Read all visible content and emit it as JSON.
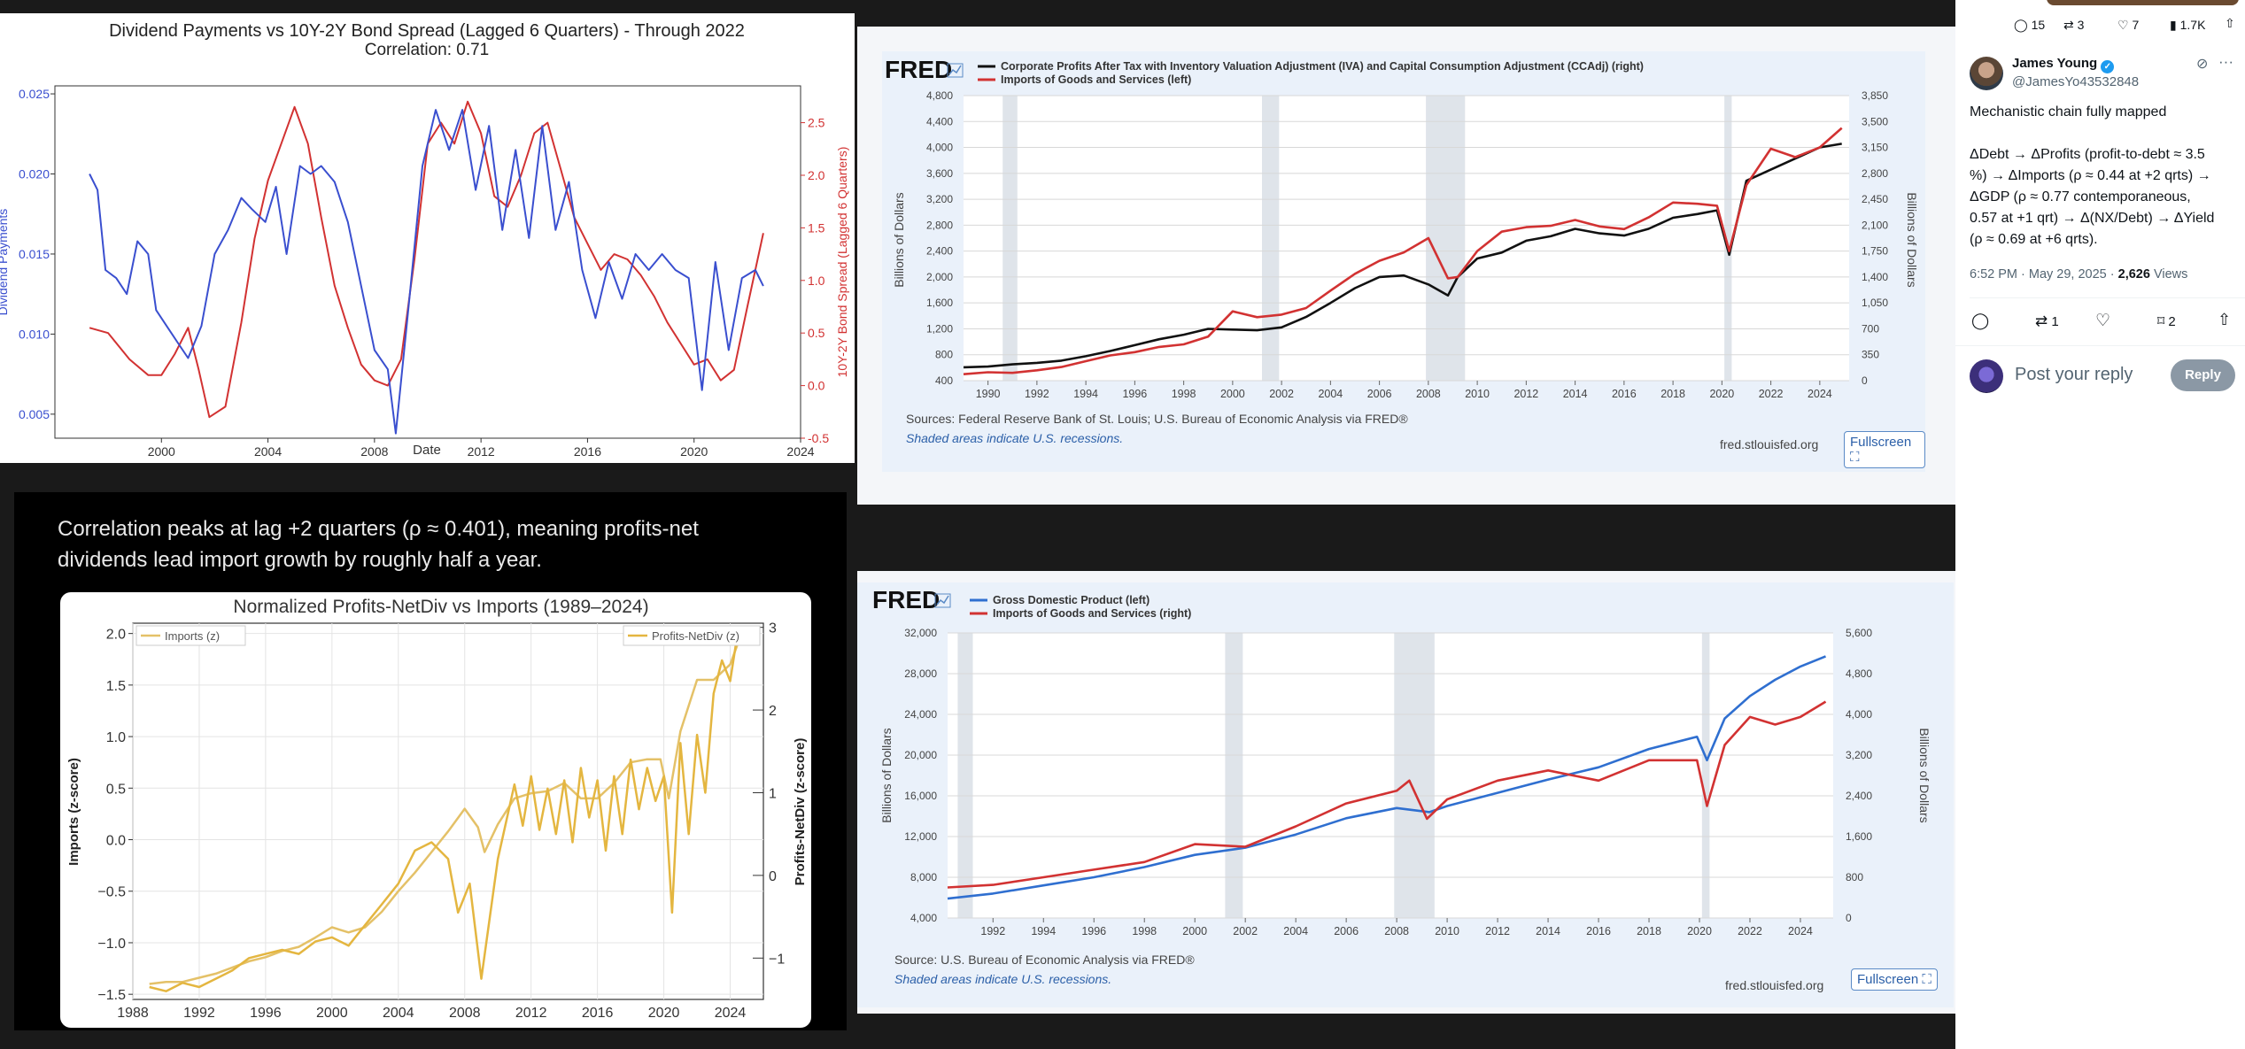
{
  "chart1": {
    "title": "Dividend Payments vs 10Y-2Y Bond Spread (Lagged 6 Quarters) - Through 2022",
    "subtitle": "Correlation: 0.71",
    "xlabel": "Date",
    "ylabel_left": "Dividend Payments",
    "ylabel_right": "10Y-2Y Bond Spread (Lagged 6 Quarters)",
    "y_left_ticks": [
      "0.025",
      "0.020",
      "0.015",
      "0.010",
      "0.005"
    ],
    "y_right_ticks": [
      "2.5",
      "2.0",
      "1.5",
      "1.0",
      "0.5",
      "0.0",
      "-0.5"
    ],
    "x_ticks": [
      "2000",
      "2004",
      "2008",
      "2012",
      "2016",
      "2020",
      "2024"
    ]
  },
  "chart2": {
    "caption": "Correlation peaks at lag +2 quarters (ρ ≈ 0.401), meaning profits-net dividends lead import growth by roughly half a year.",
    "title": "Normalized Profits-NetDiv vs Imports (1989–2024)",
    "legend_left": "Imports (z)",
    "legend_right": "Profits-NetDiv (z)",
    "ylabel_left": "Imports (z-score)",
    "ylabel_right": "Profits-NetDiv (z-score)",
    "y_left_ticks": [
      "2.0",
      "1.5",
      "1.0",
      "0.5",
      "0.0",
      "−0.5",
      "−1.0",
      "−1.5"
    ],
    "y_right_ticks": [
      "3",
      "2",
      "1",
      "0",
      "−1"
    ],
    "x_ticks": [
      "1988",
      "1992",
      "1996",
      "2000",
      "2004",
      "2008",
      "2012",
      "2016",
      "2020",
      "2024"
    ]
  },
  "fred1": {
    "logo": "FRED",
    "legend1": "Corporate Profits After Tax with Inventory Valuation Adjustment (IVA) and Capital Consumption Adjustment (CCAdj) (right)",
    "legend2": "Imports of Goods and Services (left)",
    "ylabel_left": "Billions of Dollars",
    "ylabel_right": "Billions of Dollars",
    "y_left_ticks": [
      "4,800",
      "4,400",
      "4,000",
      "3,600",
      "3,200",
      "2,800",
      "2,400",
      "2,000",
      "1,600",
      "1,200",
      "800",
      "400"
    ],
    "y_right_ticks": [
      "3,850",
      "3,500",
      "3,150",
      "2,800",
      "2,450",
      "2,100",
      "1,750",
      "1,400",
      "1,050",
      "700",
      "350",
      "0"
    ],
    "x_ticks": [
      "1990",
      "1992",
      "1994",
      "1996",
      "1998",
      "2000",
      "2002",
      "2004",
      "2006",
      "2008",
      "2010",
      "2012",
      "2014",
      "2016",
      "2018",
      "2020",
      "2022",
      "2024"
    ],
    "sources": "Sources: Federal Reserve Bank of St. Louis; U.S. Bureau of Economic Analysis via FRED®",
    "shaded": "Shaded areas indicate U.S. recessions.",
    "site": "fred.stlouisfed.org",
    "fullscreen": "Fullscreen ⛶"
  },
  "fred2": {
    "logo": "FRED",
    "legend1": "Gross Domestic Product (left)",
    "legend2": "Imports of Goods and Services (right)",
    "ylabel_left": "Billions of Dollars",
    "ylabel_right": "Billions of Dollars",
    "y_left_ticks": [
      "32,000",
      "28,000",
      "24,000",
      "20,000",
      "16,000",
      "12,000",
      "8,000",
      "4,000"
    ],
    "y_right_ticks": [
      "5,600",
      "4,800",
      "4,000",
      "3,200",
      "2,400",
      "1,600",
      "800",
      "0"
    ],
    "x_ticks": [
      "1992",
      "1994",
      "1996",
      "1998",
      "2000",
      "2002",
      "2004",
      "2006",
      "2008",
      "2010",
      "2012",
      "2014",
      "2016",
      "2018",
      "2020",
      "2022",
      "2024"
    ],
    "sources": "Source: U.S. Bureau of Economic Analysis via FRED®",
    "shaded": "Shaded areas indicate U.S. recessions.",
    "site": "fred.stlouisfed.org",
    "fullscreen": "Fullscreen ⛶"
  },
  "tweet_top_actions": {
    "replies": "15",
    "reposts": "3",
    "likes": "7",
    "views": "1.7K"
  },
  "tweet": {
    "name": "James Young",
    "handle": "@JamesYo43532848",
    "line1": "Mechanistic chain fully mapped",
    "body": [
      "ΔDebt → ΔProfits (profit-to-debt ≈ 3.5",
      "%) → ΔImports (ρ ≈ 0.44 at +2 qrts) →",
      "ΔGDP (ρ ≈ 0.77 contemporaneous,",
      "0.57 at +1 qrt) → Δ(NX/Debt) → ΔYield",
      "(ρ ≈ 0.69 at +6 qrts)."
    ],
    "timestamp": "6:52 PM · May 29, 2025 · ",
    "views_count": "2,626",
    "views_label": " Views",
    "reposts": "1",
    "bookmarks": "2",
    "reply_placeholder": "Post your reply",
    "reply_button": "Reply",
    "colors": {
      "verified": "#1d9bf0",
      "reply_btn": "#8b98a5"
    }
  },
  "chart_data": [
    {
      "type": "line",
      "title": "Dividend Payments vs 10Y-2Y Bond Spread (Lagged 6 Quarters) - Through 2022",
      "xlabel": "Date",
      "xlim": [
        1996,
        2024
      ],
      "series": [
        {
          "name": "Dividend Payments",
          "axis": "left",
          "color": "#3a4fcf",
          "ylim": [
            0.0035,
            0.0255
          ],
          "x": [
            1997.3,
            1997.6,
            1997.9,
            1998.3,
            1998.7,
            1999.1,
            1999.5,
            1999.8,
            2000.2,
            2000.6,
            2001.0,
            2001.5,
            2002.0,
            2002.5,
            2003.0,
            2003.4,
            2003.9,
            2004.3,
            2004.7,
            2005.2,
            2005.6,
            2006.0,
            2006.5,
            2007.0,
            2007.5,
            2008.0,
            2008.5,
            2008.8,
            2009.3,
            2009.8,
            2010.3,
            2010.8,
            2011.3,
            2011.8,
            2012.3,
            2012.8,
            2013.3,
            2013.8,
            2014.3,
            2014.8,
            2015.3,
            2015.8,
            2016.3,
            2016.8,
            2017.3,
            2017.8,
            2018.3,
            2018.8,
            2019.3,
            2019.8,
            2020.3,
            2020.8,
            2021.3,
            2021.8,
            2022.3,
            2022.6
          ],
          "y": [
            0.02,
            0.019,
            0.014,
            0.0135,
            0.0125,
            0.0158,
            0.015,
            0.0115,
            0.0105,
            0.0095,
            0.0085,
            0.0105,
            0.015,
            0.0165,
            0.0185,
            0.0178,
            0.017,
            0.0192,
            0.015,
            0.0205,
            0.02,
            0.0205,
            0.0195,
            0.017,
            0.013,
            0.009,
            0.0078,
            0.0038,
            0.012,
            0.0205,
            0.024,
            0.0215,
            0.024,
            0.019,
            0.023,
            0.0165,
            0.0215,
            0.016,
            0.023,
            0.0165,
            0.0195,
            0.014,
            0.011,
            0.0145,
            0.0122,
            0.015,
            0.014,
            0.015,
            0.014,
            0.0135,
            0.0065,
            0.0145,
            0.009,
            0.0135,
            0.014,
            0.013
          ]
        },
        {
          "name": "10Y-2Y Bond Spread (Lagged 6 Quarters)",
          "axis": "right",
          "color": "#d23232",
          "ylim": [
            -0.5,
            2.85
          ],
          "x": [
            1997.3,
            1998.0,
            1998.8,
            1999.5,
            2000.0,
            2000.5,
            2001.0,
            2001.4,
            2001.8,
            2002.4,
            2003.0,
            2003.5,
            2004.0,
            2004.5,
            2005.0,
            2005.5,
            2006.0,
            2006.5,
            2007.0,
            2007.5,
            2008.0,
            2008.5,
            2009.0,
            2009.5,
            2010.0,
            2010.5,
            2011.0,
            2011.5,
            2012.0,
            2012.5,
            2013.0,
            2013.5,
            2014.0,
            2014.5,
            2015.0,
            2015.5,
            2016.0,
            2016.5,
            2017.0,
            2017.5,
            2018.0,
            2018.5,
            2019.0,
            2019.5,
            2020.0,
            2020.5,
            2021.0,
            2021.5,
            2022.0,
            2022.6
          ],
          "y": [
            0.55,
            0.5,
            0.25,
            0.1,
            0.1,
            0.3,
            0.55,
            0.15,
            -0.3,
            -0.2,
            0.6,
            1.4,
            1.95,
            2.3,
            2.65,
            2.3,
            1.6,
            0.95,
            0.55,
            0.2,
            0.05,
            0.0,
            0.25,
            1.2,
            2.3,
            2.5,
            2.3,
            2.7,
            2.4,
            1.8,
            1.7,
            2.0,
            2.4,
            2.5,
            2.05,
            1.6,
            1.35,
            1.1,
            1.25,
            1.2,
            1.05,
            0.85,
            0.6,
            0.4,
            0.2,
            0.25,
            0.05,
            0.15,
            0.75,
            1.45
          ]
        }
      ]
    },
    {
      "type": "line",
      "title": "Normalized Profits-NetDiv vs Imports (1989–2024)",
      "xlim": [
        1988,
        2026
      ],
      "series": [
        {
          "name": "Imports (z)",
          "axis": "left",
          "color": "#e4c168",
          "ylim": [
            -1.55,
            2.1
          ],
          "x": [
            1989,
            1990,
            1991,
            1992,
            1993,
            1994,
            1995,
            1996,
            1997,
            1998,
            1999,
            2000,
            2001,
            2002,
            2003,
            2004,
            2005,
            2006,
            2007,
            2008,
            2008.8,
            2009.2,
            2010,
            2011,
            2012,
            2013,
            2014,
            2015,
            2016,
            2017,
            2018,
            2019,
            2019.8,
            2020.3,
            2021,
            2022,
            2023,
            2024,
            2024.8
          ],
          "y": [
            -1.4,
            -1.38,
            -1.38,
            -1.34,
            -1.3,
            -1.24,
            -1.18,
            -1.14,
            -1.08,
            -1.04,
            -0.95,
            -0.85,
            -0.9,
            -0.85,
            -0.7,
            -0.5,
            -0.32,
            -0.12,
            0.08,
            0.3,
            0.12,
            -0.12,
            0.15,
            0.4,
            0.45,
            0.47,
            0.55,
            0.4,
            0.4,
            0.55,
            0.75,
            0.78,
            0.78,
            0.4,
            1.05,
            1.55,
            1.55,
            1.7,
            2.05
          ]
        },
        {
          "name": "Profits-NetDiv (z)",
          "axis": "right",
          "color": "#e4b640",
          "ylim": [
            -1.5,
            3.05
          ],
          "x": [
            1989,
            1990,
            1991,
            1992,
            1993,
            1994,
            1995,
            1996,
            1997,
            1998,
            1999,
            2000,
            2001,
            2002,
            2003,
            2004,
            2005,
            2006,
            2007,
            2007.6,
            2008.3,
            2009.0,
            2010,
            2011,
            2011.5,
            2012,
            2012.5,
            2013,
            2013.5,
            2014,
            2014.5,
            2015,
            2015.5,
            2016,
            2016.5,
            2017,
            2017.5,
            2018,
            2018.5,
            2019,
            2019.5,
            2020,
            2020.5,
            2021,
            2021.5,
            2022,
            2022.5,
            2023,
            2023.5,
            2024,
            2024.5
          ],
          "y": [
            -1.35,
            -1.4,
            -1.3,
            -1.35,
            -1.25,
            -1.15,
            -1.0,
            -0.95,
            -0.9,
            -0.95,
            -0.8,
            -0.75,
            -0.85,
            -0.6,
            -0.35,
            -0.1,
            0.3,
            0.4,
            0.2,
            -0.45,
            -0.1,
            -1.25,
            0.2,
            1.1,
            0.6,
            1.2,
            0.55,
            1.05,
            0.5,
            1.15,
            0.4,
            1.3,
            0.7,
            1.15,
            0.3,
            1.2,
            0.5,
            1.4,
            0.8,
            1.3,
            0.9,
            1.2,
            -0.45,
            1.6,
            0.5,
            1.7,
            1.0,
            2.2,
            2.6,
            2.35,
            3.0
          ]
        }
      ]
    },
    {
      "type": "line",
      "title": "",
      "xlim": [
        1989,
        2025.2
      ],
      "recessions": [
        [
          1990.6,
          1991.2
        ],
        [
          2001.2,
          2001.9
        ],
        [
          2007.9,
          2009.5
        ],
        [
          2020.1,
          2020.4
        ]
      ],
      "series": [
        {
          "name": "Corporate Profits After Tax with Inventory Valuation Adjustment (IVA) and Capital Consumption Adjustment (CCAdj) (right)",
          "axis": "right",
          "color": "#111111",
          "ylim": [
            0,
            3850
          ],
          "x": [
            1989,
            1990,
            1991,
            1992,
            1993,
            1994,
            1995,
            1996,
            1997,
            1998,
            1999,
            2000,
            2001,
            2002,
            2003,
            2004,
            2005,
            2006,
            2007,
            2008,
            2008.8,
            2009.2,
            2010,
            2011,
            2012,
            2013,
            2014,
            2015,
            2016,
            2017,
            2018,
            2019,
            2019.8,
            2020.3,
            2021,
            2022,
            2023,
            2024,
            2024.9
          ],
          "y": [
            180,
            190,
            220,
            240,
            270,
            330,
            400,
            480,
            560,
            620,
            700,
            690,
            680,
            720,
            860,
            1050,
            1250,
            1400,
            1420,
            1300,
            1150,
            1400,
            1650,
            1730,
            1890,
            1950,
            2050,
            1990,
            1960,
            2050,
            2200,
            2250,
            2300,
            1700,
            2700,
            2850,
            3000,
            3150,
            3200
          ]
        },
        {
          "name": "Imports of Goods and Services (left)",
          "axis": "left",
          "color": "#d23232",
          "ylim": [
            400,
            4800
          ],
          "x": [
            1989,
            1990,
            1991,
            1992,
            1993,
            1994,
            1995,
            1996,
            1997,
            1998,
            1999,
            2000,
            2001,
            2002,
            2003,
            2004,
            2005,
            2006,
            2007,
            2008,
            2008.8,
            2009.2,
            2010,
            2011,
            2012,
            2013,
            2014,
            2015,
            2016,
            2017,
            2018,
            2019,
            2019.8,
            2020.3,
            2021,
            2022,
            2023,
            2024,
            2024.9
          ],
          "y": [
            500,
            530,
            520,
            560,
            610,
            700,
            790,
            840,
            920,
            960,
            1080,
            1470,
            1380,
            1420,
            1520,
            1790,
            2050,
            2250,
            2380,
            2600,
            1980,
            2000,
            2400,
            2700,
            2770,
            2790,
            2880,
            2780,
            2740,
            2920,
            3150,
            3130,
            3100,
            2400,
            3420,
            3980,
            3850,
            4000,
            4300
          ]
        }
      ]
    },
    {
      "type": "line",
      "title": "",
      "xlim": [
        1990.2,
        2025.3
      ],
      "recessions": [
        [
          1990.6,
          1991.2
        ],
        [
          2001.2,
          2001.9
        ],
        [
          2007.9,
          2009.5
        ],
        [
          2020.1,
          2020.4
        ]
      ],
      "series": [
        {
          "name": "Gross Domestic Product (left)",
          "axis": "left",
          "color": "#2f6fd0",
          "ylim": [
            4000,
            32000
          ],
          "x": [
            1990.2,
            1992,
            1994,
            1996,
            1998,
            2000,
            2002,
            2004,
            2006,
            2008,
            2009.3,
            2010,
            2012,
            2014,
            2016,
            2018,
            2019.9,
            2020.3,
            2021,
            2022,
            2023,
            2024,
            2025
          ],
          "y": [
            5900,
            6400,
            7200,
            8000,
            9000,
            10200,
            10900,
            12200,
            13800,
            14800,
            14400,
            15000,
            16300,
            17600,
            18800,
            20600,
            21800,
            19500,
            23600,
            25800,
            27400,
            28700,
            29700
          ]
        },
        {
          "name": "Imports of Goods and Services (right)",
          "axis": "right",
          "color": "#d23232",
          "ylim": [
            0,
            5600
          ],
          "x": [
            1990.2,
            1992,
            1994,
            1996,
            1998,
            2000,
            2002,
            2004,
            2006,
            2008,
            2008.5,
            2009.2,
            2010,
            2012,
            2014,
            2016,
            2018,
            2019.9,
            2020.3,
            2021,
            2022,
            2023,
            2024,
            2025
          ],
          "y": [
            600,
            650,
            800,
            950,
            1100,
            1450,
            1400,
            1800,
            2250,
            2500,
            2700,
            1950,
            2330,
            2700,
            2900,
            2700,
            3100,
            3100,
            2200,
            3400,
            3950,
            3800,
            3950,
            4250
          ]
        }
      ]
    }
  ]
}
